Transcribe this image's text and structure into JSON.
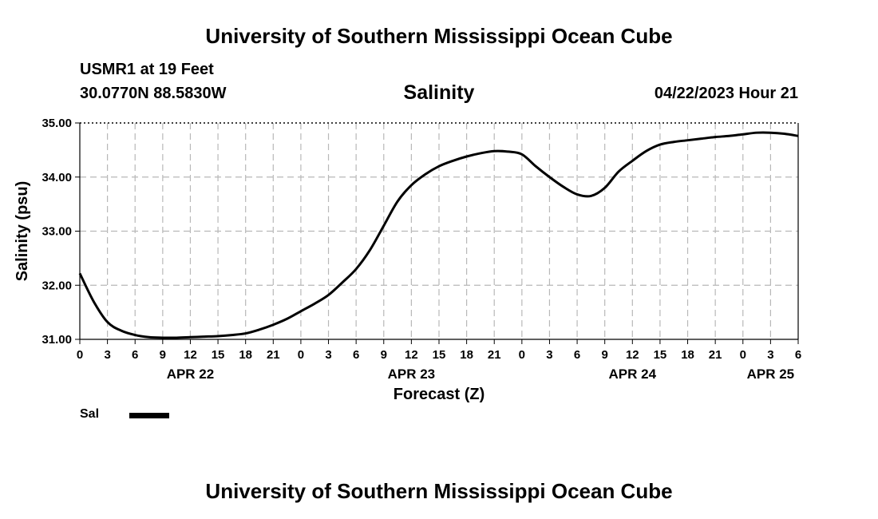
{
  "page": {
    "title": "University of Southern Mississippi Ocean Cube",
    "footer_title": "University of Southern Mississippi Ocean Cube",
    "station": "USMR1 at 19 Feet",
    "coordinates": "30.0770N  88.5830W",
    "subtitle": "Salinity",
    "datetime": "04/22/2023 Hour 21"
  },
  "chart_data": {
    "type": "line",
    "title": "Salinity",
    "xlabel": "Forecast (Z)",
    "ylabel": "Salinity (psu)",
    "ylim": [
      31.0,
      35.0
    ],
    "yticks": [
      "31.00",
      "32.00",
      "33.00",
      "34.00",
      "35.00"
    ],
    "xlim": [
      0,
      78
    ],
    "xticks": [
      "0",
      "3",
      "6",
      "9",
      "12",
      "15",
      "18",
      "21",
      "0",
      "3",
      "6",
      "9",
      "12",
      "15",
      "18",
      "21",
      "0",
      "3",
      "6",
      "9",
      "12",
      "15",
      "18",
      "21",
      "0",
      "3",
      "6"
    ],
    "date_labels": [
      {
        "label": "APR 22",
        "x": 12
      },
      {
        "label": "APR 23",
        "x": 36
      },
      {
        "label": "APR 24",
        "x": 60
      },
      {
        "label": "APR 25",
        "x": 75
      }
    ],
    "grid": true,
    "series": [
      {
        "name": "Sal",
        "color": "#000000",
        "x": [
          0,
          1.5,
          3,
          4.5,
          6,
          7.5,
          9,
          10.5,
          12,
          13.5,
          15,
          16.5,
          18,
          19.5,
          21,
          22.5,
          24,
          25.5,
          27,
          28.5,
          30,
          31.5,
          33,
          34.5,
          36,
          37.5,
          39,
          40.5,
          42,
          43.5,
          45,
          46.5,
          48,
          49.5,
          51,
          52.5,
          54,
          55.5,
          57,
          58.5,
          60,
          61.5,
          63,
          64.5,
          66,
          67.5,
          69,
          70.5,
          72,
          73.5,
          75,
          76.5,
          78
        ],
        "values": [
          32.22,
          31.7,
          31.32,
          31.16,
          31.08,
          31.04,
          31.03,
          31.03,
          31.04,
          31.05,
          31.06,
          31.08,
          31.11,
          31.18,
          31.27,
          31.38,
          31.52,
          31.66,
          31.82,
          32.05,
          32.3,
          32.65,
          33.1,
          33.55,
          33.85,
          34.05,
          34.2,
          34.3,
          34.38,
          34.44,
          34.48,
          34.47,
          34.42,
          34.2,
          34.0,
          33.82,
          33.68,
          33.65,
          33.8,
          34.1,
          34.3,
          34.48,
          34.6,
          34.65,
          34.68,
          34.71,
          34.74,
          34.76,
          34.79,
          34.82,
          34.82,
          34.8,
          34.76
        ]
      }
    ]
  },
  "legend": {
    "entries": [
      {
        "label": "Sal",
        "color": "#000000"
      }
    ]
  }
}
